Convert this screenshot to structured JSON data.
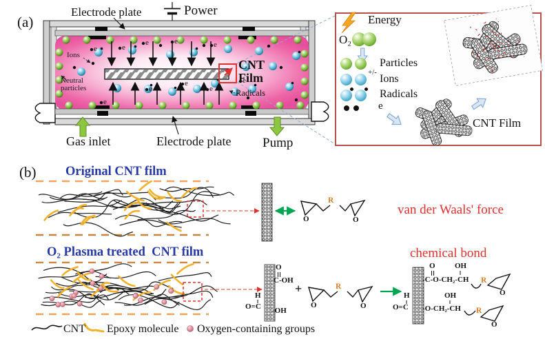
{
  "panel_a": {
    "label": "(a)",
    "electrode_plate_top": "Electrode plate",
    "electrode_plate_bottom": "Electrode plate",
    "power_label": "Power",
    "ions_label": "Ions",
    "neutral_particles_label": "Neutral particles",
    "cnt_film_line1": "CNT",
    "cnt_film_line2": "Film",
    "radicals_label": "Radicals",
    "gas_inlet_label": "Gas inlet",
    "pump_label": "Pump",
    "electron_label": "e"
  },
  "detail_box": {
    "energy_label": "Energy",
    "o2_label": "O₂",
    "rows": [
      {
        "icon": "green-particle-pair",
        "label": "Particles",
        "charge": ""
      },
      {
        "icon": "blue-ion-pair",
        "label": "Ions",
        "charge": "+/-"
      },
      {
        "icon": "blue-radical-pair",
        "label": "Radicals",
        "charge": ""
      },
      {
        "icon": "electron-pair",
        "label": "e",
        "charge": ""
      }
    ],
    "cnt_film_label": "CNT Film"
  },
  "panel_b": {
    "label": "(b)",
    "original_film_title": "Original CNT film",
    "treated_film_title": "O₂ Plasma treated  CNT film",
    "vdw_label": "van der Waals' force",
    "chemical_bond_label": "chemical bond",
    "plus_sign": "+",
    "r_group": "R",
    "epoxide_o": "O",
    "reactant_groups": {
      "o": "O",
      "c_oh": "C-OH",
      "h": "H",
      "o_c": "O=C",
      "oh": "-OH"
    },
    "product_groups": {
      "chain1_o": "O",
      "chain1_oh": "OH",
      "chain1": "-C-O-CH₂-CH",
      "chain2_h": "H",
      "chain2_oc": "O=C",
      "chain2_oh": "OH",
      "chain2": "-O-CH₂-CH"
    },
    "legend": [
      {
        "label": "CNT"
      },
      {
        "label": "Epoxy molecule"
      },
      {
        "label": "Oxygen-containing groups"
      }
    ]
  },
  "colors": {
    "chamber_pink": "#ee5fa4",
    "sphere_green": "#7db93e",
    "sphere_blue": "#54b4d6",
    "accent_red": "#e0312f",
    "title_blue": "#2639a5",
    "epoxy_yellow": "#f2b12c",
    "oxygen_pink": "#e0899a",
    "arrow_green": "#00a651",
    "detail_box_border": "#b5524a"
  }
}
